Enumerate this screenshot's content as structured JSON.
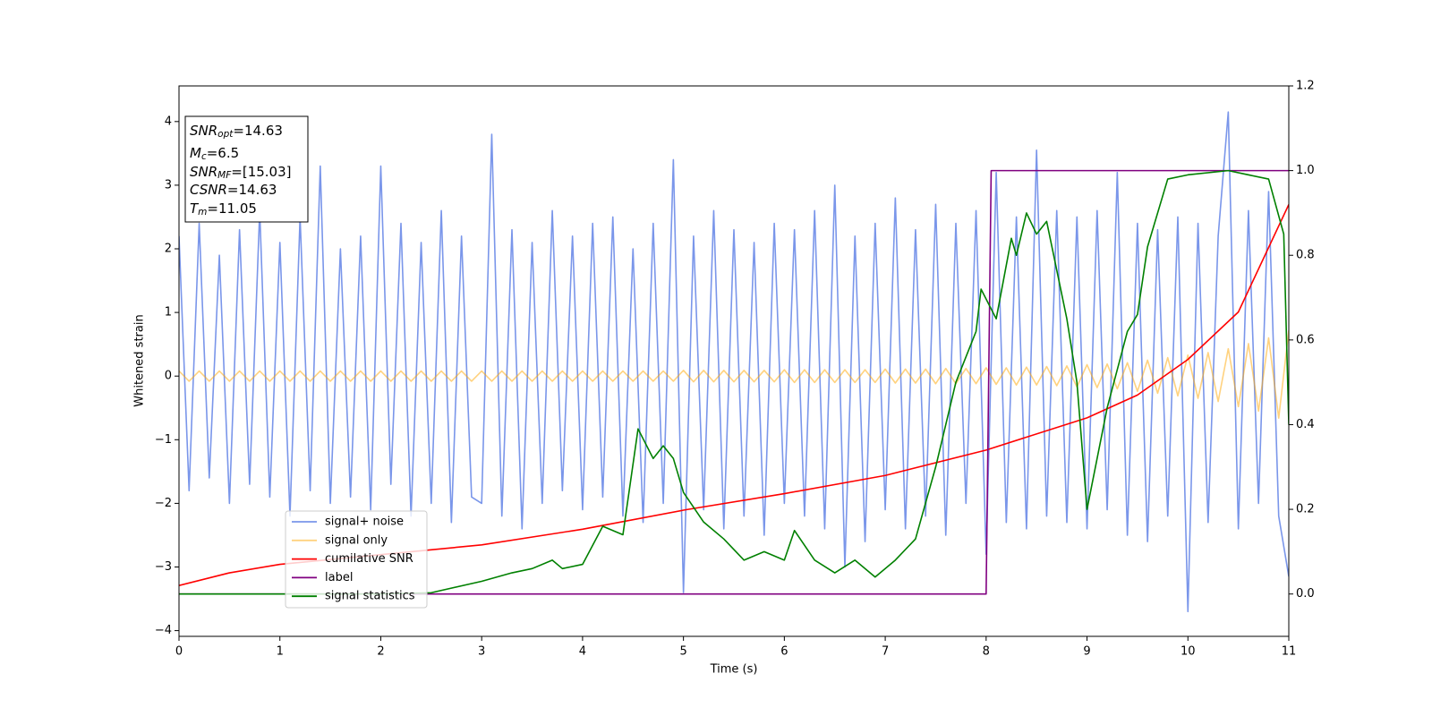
{
  "chart_data": {
    "type": "line",
    "xlabel": "Time (s)",
    "ylabel": "Whitened strain",
    "xlim": [
      0,
      11
    ],
    "xticks": [
      0,
      1,
      2,
      3,
      4,
      5,
      6,
      7,
      8,
      9,
      10,
      11
    ],
    "ylim": [
      -4.09,
      4.56
    ],
    "yticks": [
      -4,
      -3,
      -2,
      -1,
      0,
      1,
      2,
      3,
      4
    ],
    "y2lim": [
      -0.1,
      1.2
    ],
    "y2ticks": [
      {
        "value": 0,
        "label": "0.0"
      },
      0.2,
      0.4,
      0.6,
      0.8,
      {
        "value": 1,
        "label": "1.0"
      },
      1.2
    ],
    "legend": "lower left",
    "annotation": [
      {
        "base": "SNR",
        "sub": "opt",
        "rest": "=14.63"
      },
      {
        "base": "M",
        "sub": "c",
        "rest": "=6.5"
      },
      {
        "base": "SNR",
        "sub": "MF",
        "rest": "=[15.03]"
      },
      {
        "base": "CSNR",
        "sub": "",
        "rest": "=14.63"
      },
      {
        "base": "T",
        "sub": "m",
        "rest": "=11.05"
      }
    ],
    "x": [
      0,
      0.1,
      0.2,
      0.3,
      0.4,
      0.5,
      0.6,
      0.7,
      0.8,
      0.9,
      1,
      1.1,
      1.2,
      1.3,
      1.4,
      1.5,
      1.6,
      1.7,
      1.8,
      1.9,
      2,
      2.1,
      2.2,
      2.3,
      2.4,
      2.5,
      2.6,
      2.7,
      2.8,
      2.9,
      3,
      3.1,
      3.2,
      3.3,
      3.4,
      3.5,
      3.6,
      3.7,
      3.8,
      3.9,
      4,
      4.1,
      4.2,
      4.3,
      4.4,
      4.5,
      4.6,
      4.7,
      4.8,
      4.9,
      5,
      5.1,
      5.2,
      5.3,
      5.4,
      5.5,
      5.6,
      5.7,
      5.8,
      5.9,
      6,
      6.1,
      6.2,
      6.3,
      6.4,
      6.5,
      6.6,
      6.7,
      6.8,
      6.9,
      7,
      7.1,
      7.2,
      7.3,
      7.4,
      7.5,
      7.6,
      7.7,
      7.8,
      7.9,
      8,
      8.1,
      8.2,
      8.3,
      8.4,
      8.5,
      8.6,
      8.7,
      8.8,
      8.9,
      9,
      9.1,
      9.2,
      9.3,
      9.4,
      9.5,
      9.6,
      9.7,
      9.8,
      9.9,
      10,
      10.1,
      10.2,
      10.3,
      10.4,
      10.5,
      10.6,
      10.7,
      10.8,
      10.9,
      11
    ],
    "series": [
      {
        "name": "signal+ noise",
        "color": "#4169e1",
        "alpha": 0.7,
        "values": [
          2.2,
          -1.8,
          2.4,
          -1.6,
          1.9,
          -2.0,
          2.3,
          -1.7,
          2.6,
          -1.9,
          2.1,
          -2.2,
          2.5,
          -1.8,
          3.3,
          -2.0,
          2.0,
          -1.9,
          2.2,
          -2.1,
          3.3,
          -1.7,
          2.4,
          -2.2,
          2.1,
          -2.0,
          2.6,
          -2.3,
          2.2,
          -1.9,
          -2.0,
          3.8,
          -2.2,
          2.3,
          -2.4,
          2.1,
          -2.0,
          2.6,
          -1.8,
          2.2,
          -2.1,
          2.4,
          -1.9,
          2.5,
          -2.2,
          2.0,
          -2.3,
          2.4,
          -2.0,
          3.4,
          -3.4,
          2.2,
          -2.1,
          2.6,
          -2.4,
          2.3,
          -2.2,
          2.1,
          -2.5,
          2.4,
          -2.0,
          2.3,
          -2.2,
          2.6,
          -2.4,
          3.0,
          -3.0,
          2.2,
          -2.6,
          2.4,
          -2.1,
          2.8,
          -2.4,
          2.3,
          -2.2,
          2.7,
          -2.5,
          2.4,
          -2.0,
          2.6,
          -2.8,
          3.2,
          -2.3,
          2.5,
          -2.4,
          3.55,
          -2.2,
          2.6,
          -2.3,
          2.5,
          -2.4,
          2.6,
          -2.1,
          3.2,
          -2.5,
          2.4,
          -2.6,
          2.3,
          -2.2,
          2.5,
          -3.7,
          2.4,
          -2.3,
          2.2,
          4.15,
          -2.4,
          2.6,
          -2.0,
          2.9,
          -2.2,
          -3.15
        ]
      },
      {
        "name": "signal only",
        "color": "#ffa500",
        "alpha": 0.5,
        "values": [
          0.08,
          -0.08,
          0.08,
          -0.08,
          0.08,
          -0.08,
          0.08,
          -0.08,
          0.08,
          -0.08,
          0.08,
          -0.08,
          0.08,
          -0.08,
          0.08,
          -0.08,
          0.08,
          -0.08,
          0.08,
          -0.08,
          0.08,
          -0.08,
          0.08,
          -0.08,
          0.08,
          -0.08,
          0.08,
          -0.08,
          0.08,
          -0.08,
          0.08,
          -0.08,
          0.08,
          -0.08,
          0.08,
          -0.08,
          0.08,
          -0.08,
          0.08,
          -0.08,
          0.08,
          -0.08,
          0.08,
          -0.08,
          0.08,
          -0.08,
          0.08,
          -0.08,
          0.08,
          -0.08,
          0.09,
          -0.09,
          0.09,
          -0.09,
          0.09,
          -0.09,
          0.09,
          -0.09,
          0.09,
          -0.09,
          0.1,
          -0.1,
          0.1,
          -0.1,
          0.1,
          -0.1,
          0.1,
          -0.1,
          0.1,
          -0.1,
          0.11,
          -0.11,
          0.11,
          -0.11,
          0.11,
          -0.12,
          0.12,
          -0.12,
          0.12,
          -0.12,
          0.13,
          -0.13,
          0.13,
          -0.14,
          0.14,
          -0.14,
          0.15,
          -0.15,
          0.16,
          -0.17,
          0.18,
          -0.18,
          0.19,
          -0.2,
          0.21,
          -0.24,
          0.25,
          -0.27,
          0.29,
          -0.31,
          0.33,
          -0.35,
          0.37,
          -0.4,
          0.43,
          -0.48,
          0.51,
          -0.55,
          0.6,
          -0.66,
          0.72
        ]
      },
      {
        "name": "cumilative SNR",
        "color": "#ff0000",
        "axis": "y2",
        "x": [
          0,
          0.5,
          1,
          2,
          3,
          4,
          5,
          6,
          7,
          8,
          9,
          9.5,
          10,
          10.5,
          11
        ],
        "values": [
          0.02,
          0.05,
          0.07,
          0.093,
          0.116,
          0.153,
          0.198,
          0.237,
          0.28,
          0.34,
          0.416,
          0.47,
          0.554,
          0.666,
          0.92
        ]
      },
      {
        "name": "label",
        "color": "#800080",
        "axis": "y2",
        "x": [
          0,
          8,
          8.05,
          11
        ],
        "values": [
          0,
          0,
          1,
          1
        ]
      },
      {
        "name": "signal statistics",
        "color": "#008000",
        "axis": "y2",
        "x": [
          0,
          2,
          2.5,
          3,
          3.3,
          3.5,
          3.7,
          3.8,
          4,
          4.2,
          4.4,
          4.55,
          4.7,
          4.8,
          4.9,
          5,
          5.2,
          5.4,
          5.6,
          5.8,
          6,
          6.1,
          6.3,
          6.5,
          6.7,
          6.9,
          7.1,
          7.3,
          7.5,
          7.7,
          7.9,
          7.95,
          8.1,
          8.25,
          8.3,
          8.4,
          8.5,
          8.6,
          8.8,
          8.9,
          9,
          9.2,
          9.4,
          9.5,
          9.6,
          9.8,
          10,
          10.4,
          10.8,
          10.95,
          11
        ],
        "values": [
          0,
          0,
          0.003,
          0.03,
          0.05,
          0.06,
          0.08,
          0.06,
          0.07,
          0.16,
          0.14,
          0.39,
          0.32,
          0.35,
          0.32,
          0.24,
          0.17,
          0.13,
          0.08,
          0.1,
          0.08,
          0.15,
          0.08,
          0.05,
          0.08,
          0.04,
          0.08,
          0.13,
          0.3,
          0.5,
          0.62,
          0.72,
          0.65,
          0.84,
          0.8,
          0.9,
          0.85,
          0.88,
          0.65,
          0.5,
          0.2,
          0.44,
          0.62,
          0.66,
          0.82,
          0.98,
          0.99,
          1.0,
          0.98,
          0.85,
          0.4
        ]
      }
    ]
  }
}
